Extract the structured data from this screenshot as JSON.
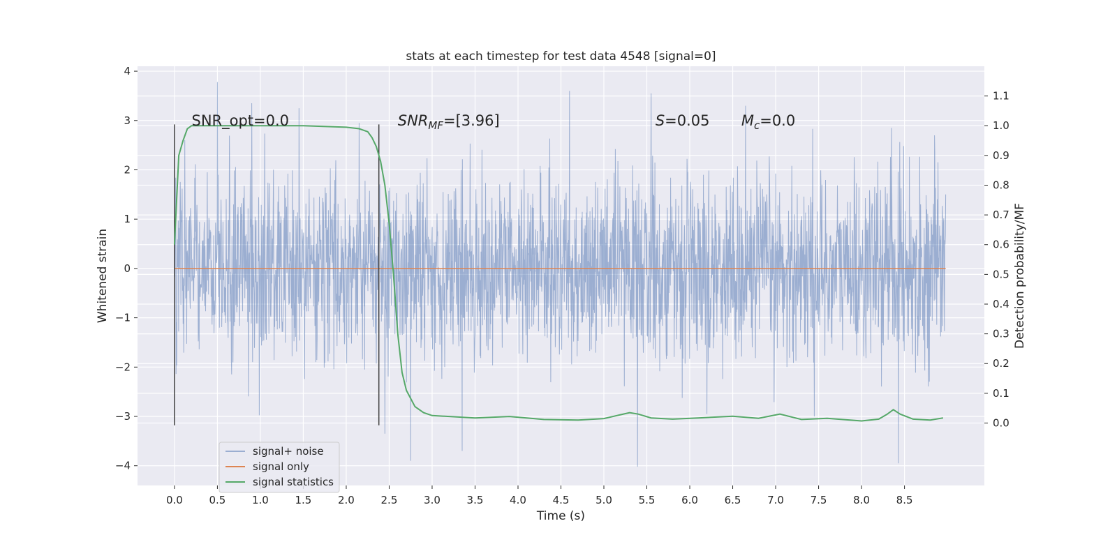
{
  "chart_data": {
    "type": "line",
    "title": "stats at each timestep for test data 4548 [signal=0]",
    "xlabel": "Time (s)",
    "ylabel": "Whitened strain",
    "y2label": "Detection probability/MF",
    "xlim": [
      -0.43,
      9.43
    ],
    "ylim": [
      -4.4,
      4.1
    ],
    "y2lim": [
      -0.21,
      1.2
    ],
    "xticks": [
      0.0,
      0.5,
      1.0,
      1.5,
      2.0,
      2.5,
      3.0,
      3.5,
      4.0,
      4.5,
      5.0,
      5.5,
      6.0,
      6.5,
      7.0,
      7.5,
      8.0,
      8.5
    ],
    "yticks": [
      -4,
      -3,
      -2,
      -1,
      0,
      1,
      2,
      3,
      4
    ],
    "y2ticks": [
      0.0,
      0.1,
      0.2,
      0.3,
      0.4,
      0.5,
      0.6,
      0.7,
      0.8,
      0.9,
      1.0,
      1.1
    ],
    "grid": true,
    "legend_position": "lower-left",
    "series": [
      {
        "name": "signal+ noise",
        "axis": "left",
        "color": "#4c72b0",
        "opacity": 0.5,
        "x_start": 0.0,
        "x_end": 8.98,
        "envelope": {
          "typical_amplitude": 1.1,
          "upper_peak": 3.78,
          "lower_peak": -4.02
        },
        "x": [
          0.0,
          0.12,
          0.5,
          0.9,
          1.45,
          2.15,
          2.45,
          2.75,
          3.35,
          4.6,
          5.55,
          6.2,
          6.65,
          7.45,
          8.35,
          8.43,
          8.85,
          8.98
        ],
        "y": [
          0.9,
          2.6,
          3.78,
          3.35,
          3.25,
          2.95,
          -3.35,
          -3.9,
          -3.7,
          3.6,
          3.55,
          -2.95,
          3.3,
          -3.0,
          2.85,
          -3.95,
          2.7,
          1.5
        ]
      },
      {
        "name": "signal only",
        "axis": "left",
        "color": "#dd8452",
        "x": [
          0.0,
          8.98
        ],
        "y": [
          0.0,
          0.0
        ]
      },
      {
        "name": "signal statistics",
        "axis": "right",
        "color": "#55a868",
        "x": [
          0.0,
          0.05,
          0.1,
          0.15,
          0.2,
          0.3,
          0.5,
          1.0,
          1.5,
          2.0,
          2.15,
          2.25,
          2.3,
          2.35,
          2.4,
          2.45,
          2.5,
          2.55,
          2.6,
          2.65,
          2.7,
          2.8,
          2.9,
          3.0,
          3.2,
          3.5,
          3.9,
          4.3,
          4.7,
          5.0,
          5.15,
          5.3,
          5.4,
          5.55,
          5.8,
          6.1,
          6.5,
          6.8,
          7.05,
          7.3,
          7.6,
          8.0,
          8.2,
          8.3,
          8.37,
          8.45,
          8.6,
          8.8,
          8.95
        ],
        "y": [
          0.6,
          0.9,
          0.95,
          0.99,
          1.0,
          1.0,
          1.0,
          1.0,
          1.0,
          0.995,
          0.99,
          0.98,
          0.96,
          0.93,
          0.88,
          0.8,
          0.67,
          0.5,
          0.3,
          0.17,
          0.11,
          0.055,
          0.035,
          0.025,
          0.022,
          0.017,
          0.022,
          0.012,
          0.01,
          0.015,
          0.025,
          0.035,
          0.03,
          0.017,
          0.013,
          0.017,
          0.023,
          0.016,
          0.03,
          0.012,
          0.016,
          0.007,
          0.013,
          0.03,
          0.045,
          0.03,
          0.013,
          0.01,
          0.017
        ]
      }
    ],
    "vlines": [
      {
        "x": 0.0,
        "ymin": -3.18,
        "ymax": 2.92,
        "color": "#404040"
      },
      {
        "x": 2.38,
        "ymin": -3.18,
        "ymax": 2.92,
        "color": "#404040"
      }
    ],
    "annotations": [
      {
        "text": "SNR_opt=0.0",
        "x": 0.2,
        "y": 2.9
      },
      {
        "text": "SNRMF=[3.96]",
        "x": 2.6,
        "y": 2.9
      },
      {
        "text": "S=0.05",
        "x": 5.6,
        "y": 2.9
      },
      {
        "text": "Mc=0.0",
        "x": 6.6,
        "y": 2.9
      }
    ],
    "annotation_parts": {
      "snr_mf": {
        "var": "SNR",
        "sub": "MF",
        "rest": "=[3.96]"
      },
      "s": {
        "var": "S",
        "rest": "=0.05"
      },
      "mc": {
        "var": "M",
        "sub": "c",
        "rest": "=0.0"
      }
    }
  }
}
